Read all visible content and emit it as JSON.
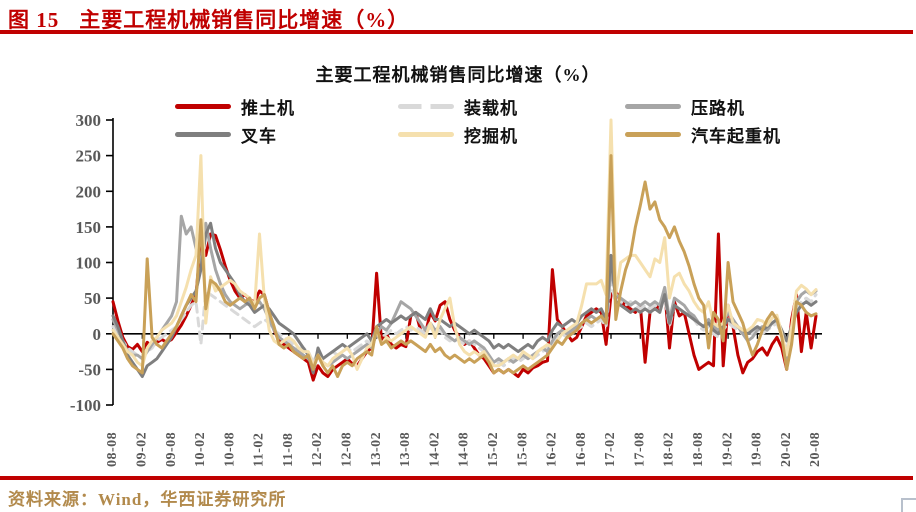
{
  "figure_header": {
    "label": "图 15",
    "title": "主要工程机械销售同比增速（%）"
  },
  "source_note": "资料来源：Wind，华西证券研究所",
  "colors": {
    "accent_red": "#C00000",
    "axis_tick_text": "#595959",
    "source_text": "#B28A4C",
    "corner_mark": "#B8C0CC"
  },
  "chart_data": {
    "type": "line",
    "title": "主要工程机械销售同比增速（%）",
    "xlabel": "",
    "ylabel": "",
    "ylim": [
      -100,
      300
    ],
    "y_ticks": [
      300,
      250,
      200,
      150,
      100,
      50,
      0,
      -50,
      -100
    ],
    "grid": false,
    "legend_position": "top",
    "x_frequency": "monthly",
    "x_start": "2008-08",
    "x_end": "2020-08",
    "x_tick_labels": [
      "08-08",
      "09-02",
      "09-08",
      "10-02",
      "10-08",
      "11-02",
      "11-08",
      "12-02",
      "12-08",
      "13-02",
      "13-08",
      "14-02",
      "14-08",
      "15-02",
      "15-08",
      "16-02",
      "16-08",
      "17-02",
      "17-08",
      "18-02",
      "18-08",
      "19-02",
      "19-08",
      "20-02",
      "20-08"
    ],
    "series": [
      {
        "name": "推土机",
        "key": "bulldozer",
        "color": "#C00000",
        "dash": false,
        "values": [
          45,
          18,
          -5,
          -18,
          -22,
          -15,
          -25,
          -12,
          -18,
          -12,
          -8,
          -12,
          -8,
          2,
          12,
          25,
          40,
          55,
          130,
          110,
          140,
          138,
          118,
          95,
          75,
          60,
          50,
          55,
          48,
          45,
          60,
          55,
          30,
          5,
          -10,
          -15,
          -20,
          -25,
          -30,
          -35,
          -40,
          -65,
          -45,
          -55,
          -60,
          -50,
          -45,
          -40,
          -35,
          -42,
          -45,
          -35,
          -25,
          -20,
          85,
          -10,
          0,
          -15,
          -20,
          -15,
          -18,
          25,
          30,
          5,
          0,
          30,
          18,
          40,
          45,
          20,
          5,
          -5,
          -15,
          -10,
          -20,
          -30,
          -35,
          -45,
          -55,
          -50,
          -55,
          -50,
          -55,
          -60,
          -50,
          -55,
          -48,
          -45,
          -40,
          -38,
          90,
          20,
          10,
          0,
          -10,
          -5,
          10,
          25,
          30,
          35,
          30,
          -15,
          55,
          60,
          45,
          40,
          35,
          30,
          40,
          -40,
          30,
          40,
          35,
          60,
          -20,
          45,
          25,
          30,
          0,
          -30,
          -50,
          -45,
          -40,
          -45,
          140,
          -45,
          40,
          10,
          -30,
          -55,
          -40,
          -35,
          -25,
          -20,
          -30,
          -15,
          -5,
          -20,
          -50,
          20,
          55,
          -25,
          30,
          -20,
          25
        ]
      },
      {
        "name": "装载机",
        "key": "loader",
        "color": "#D9D9D9",
        "dash": true,
        "values": [
          10,
          0,
          -10,
          -20,
          -25,
          -30,
          -35,
          -25,
          -20,
          -10,
          -5,
          0,
          5,
          10,
          20,
          30,
          40,
          45,
          -15,
          60,
          55,
          50,
          45,
          40,
          35,
          30,
          25,
          20,
          15,
          10,
          15,
          20,
          15,
          5,
          0,
          -5,
          -10,
          -15,
          -20,
          -20,
          -25,
          -40,
          -25,
          -35,
          -30,
          -25,
          -30,
          -25,
          -20,
          -25,
          -20,
          -15,
          -10,
          -15,
          0,
          -5,
          0,
          5,
          0,
          5,
          10,
          5,
          10,
          5,
          0,
          10,
          0,
          5,
          -5,
          -10,
          -5,
          -10,
          -15,
          -10,
          -15,
          -20,
          -25,
          -35,
          -45,
          -40,
          -45,
          -40,
          -35,
          -40,
          -35,
          -30,
          -35,
          -30,
          -25,
          -20,
          -15,
          -5,
          0,
          -5,
          0,
          5,
          10,
          15,
          10,
          15,
          20,
          10,
          75,
          40,
          45,
          40,
          45,
          40,
          35,
          40,
          35,
          40,
          35,
          50,
          10,
          40,
          35,
          30,
          25,
          20,
          10,
          5,
          10,
          0,
          -5,
          5,
          15,
          10,
          5,
          0,
          -5,
          0,
          5,
          0,
          5,
          10,
          15,
          -5,
          -20,
          5,
          35,
          45,
          50,
          45,
          55
        ]
      },
      {
        "name": "压路机",
        "key": "roller",
        "color": "#A6A6A6",
        "dash": false,
        "values": [
          20,
          5,
          -10,
          -25,
          -30,
          -30,
          -35,
          -25,
          -15,
          -5,
          5,
          15,
          25,
          45,
          165,
          140,
          150,
          120,
          100,
          155,
          120,
          90,
          70,
          55,
          45,
          40,
          35,
          40,
          45,
          40,
          45,
          35,
          20,
          5,
          -5,
          -10,
          -15,
          -20,
          -25,
          -30,
          -35,
          -45,
          -30,
          -40,
          -45,
          -40,
          -35,
          -30,
          -35,
          -30,
          -25,
          -20,
          -15,
          -20,
          0,
          10,
          5,
          15,
          30,
          45,
          40,
          35,
          25,
          15,
          5,
          15,
          5,
          10,
          0,
          -5,
          -10,
          -5,
          -10,
          -15,
          -10,
          -15,
          -20,
          -30,
          -40,
          -35,
          -40,
          -35,
          -40,
          -35,
          -30,
          -35,
          -30,
          -25,
          -20,
          -25,
          -10,
          0,
          5,
          0,
          5,
          10,
          15,
          20,
          25,
          20,
          25,
          15,
          90,
          55,
          50,
          45,
          40,
          45,
          40,
          45,
          40,
          45,
          40,
          65,
          20,
          50,
          45,
          40,
          30,
          25,
          15,
          10,
          20,
          10,
          5,
          15,
          30,
          20,
          10,
          0,
          -10,
          -5,
          5,
          10,
          5,
          15,
          20,
          0,
          -40,
          5,
          45,
          55,
          60,
          55,
          60
        ]
      },
      {
        "name": "叉车",
        "key": "forklift",
        "color": "#7F7F7F",
        "dash": false,
        "values": [
          25,
          10,
          -10,
          -30,
          -40,
          -50,
          -60,
          -45,
          -40,
          -35,
          -25,
          -15,
          -5,
          10,
          25,
          40,
          50,
          60,
          90,
          140,
          155,
          120,
          100,
          90,
          80,
          70,
          55,
          45,
          40,
          30,
          35,
          40,
          35,
          25,
          15,
          10,
          5,
          0,
          -10,
          -20,
          -30,
          -55,
          -20,
          -35,
          -30,
          -25,
          -20,
          -15,
          -20,
          -15,
          -10,
          -5,
          0,
          -10,
          10,
          15,
          20,
          15,
          20,
          25,
          20,
          25,
          30,
          25,
          20,
          35,
          20,
          20,
          15,
          10,
          15,
          10,
          5,
          0,
          5,
          0,
          -5,
          -10,
          -20,
          -15,
          -20,
          -15,
          -20,
          -25,
          -20,
          -15,
          -20,
          -10,
          -5,
          -10,
          5,
          15,
          10,
          15,
          20,
          15,
          25,
          30,
          35,
          30,
          35,
          20,
          110,
          45,
          40,
          35,
          30,
          35,
          30,
          35,
          30,
          35,
          30,
          55,
          15,
          40,
          35,
          30,
          25,
          20,
          15,
          10,
          15,
          5,
          0,
          10,
          20,
          15,
          10,
          5,
          0,
          5,
          10,
          5,
          10,
          15,
          20,
          5,
          -10,
          10,
          30,
          40,
          45,
          40,
          45
        ]
      },
      {
        "name": "挖掘机",
        "key": "excavator",
        "color": "#F5E0AE",
        "dash": false,
        "values": [
          5,
          -5,
          -15,
          -25,
          -30,
          -40,
          -45,
          -20,
          -10,
          -5,
          5,
          10,
          15,
          25,
          45,
          65,
          90,
          110,
          250,
          15,
          80,
          60,
          65,
          70,
          75,
          70,
          60,
          55,
          50,
          40,
          140,
          50,
          5,
          -10,
          -15,
          -10,
          -5,
          -10,
          -20,
          -25,
          -25,
          -45,
          -30,
          -40,
          -45,
          -35,
          -30,
          -25,
          -20,
          -30,
          -50,
          -35,
          -20,
          -15,
          5,
          -15,
          -5,
          -10,
          -5,
          0,
          5,
          10,
          5,
          0,
          -5,
          15,
          -5,
          20,
          35,
          50,
          10,
          -15,
          -25,
          -30,
          -25,
          -30,
          -25,
          -35,
          -45,
          -45,
          -40,
          -35,
          -30,
          -35,
          -25,
          -30,
          -35,
          -25,
          -20,
          -15,
          -20,
          -10,
          0,
          5,
          10,
          15,
          40,
          70,
          70,
          70,
          75,
          55,
          300,
          55,
          100,
          105,
          110,
          110,
          100,
          90,
          80,
          105,
          100,
          135,
          50,
          80,
          85,
          70,
          60,
          45,
          35,
          30,
          45,
          15,
          10,
          15,
          40,
          15,
          10,
          5,
          5,
          10,
          20,
          18,
          12,
          22,
          26,
          0,
          -30,
          10,
          60,
          68,
          63,
          55,
          62
        ]
      },
      {
        "name": "汽车起重机",
        "key": "truck-crane",
        "color": "#C9A158",
        "dash": false,
        "values": [
          0,
          -10,
          -20,
          -35,
          -45,
          -50,
          -55,
          105,
          -5,
          -15,
          -20,
          -10,
          0,
          10,
          25,
          40,
          55,
          45,
          160,
          35,
          75,
          70,
          60,
          45,
          40,
          45,
          50,
          45,
          50,
          35,
          50,
          55,
          30,
          10,
          -15,
          -20,
          -15,
          -25,
          -30,
          -35,
          -30,
          -50,
          -30,
          -45,
          -55,
          -45,
          -60,
          -45,
          -40,
          -45,
          -35,
          -30,
          -25,
          -30,
          10,
          -15,
          -10,
          -20,
          -15,
          -10,
          -15,
          -10,
          -15,
          -20,
          -25,
          -15,
          -25,
          -20,
          -30,
          -35,
          -30,
          -35,
          -40,
          -35,
          -40,
          -35,
          -30,
          -40,
          -55,
          -50,
          -55,
          -50,
          -55,
          -50,
          -45,
          -50,
          -45,
          -40,
          -35,
          -30,
          -20,
          -10,
          -15,
          -5,
          0,
          5,
          15,
          20,
          15,
          20,
          25,
          15,
          250,
          20,
          60,
          90,
          110,
          150,
          180,
          213,
          175,
          185,
          160,
          150,
          135,
          150,
          130,
          115,
          95,
          70,
          50,
          40,
          -20,
          30,
          20,
          -10,
          100,
          45,
          30,
          15,
          -10,
          -30,
          -15,
          5,
          20,
          30,
          20,
          -5,
          -50,
          -15,
          45,
          40,
          30,
          25,
          28
        ]
      }
    ]
  }
}
